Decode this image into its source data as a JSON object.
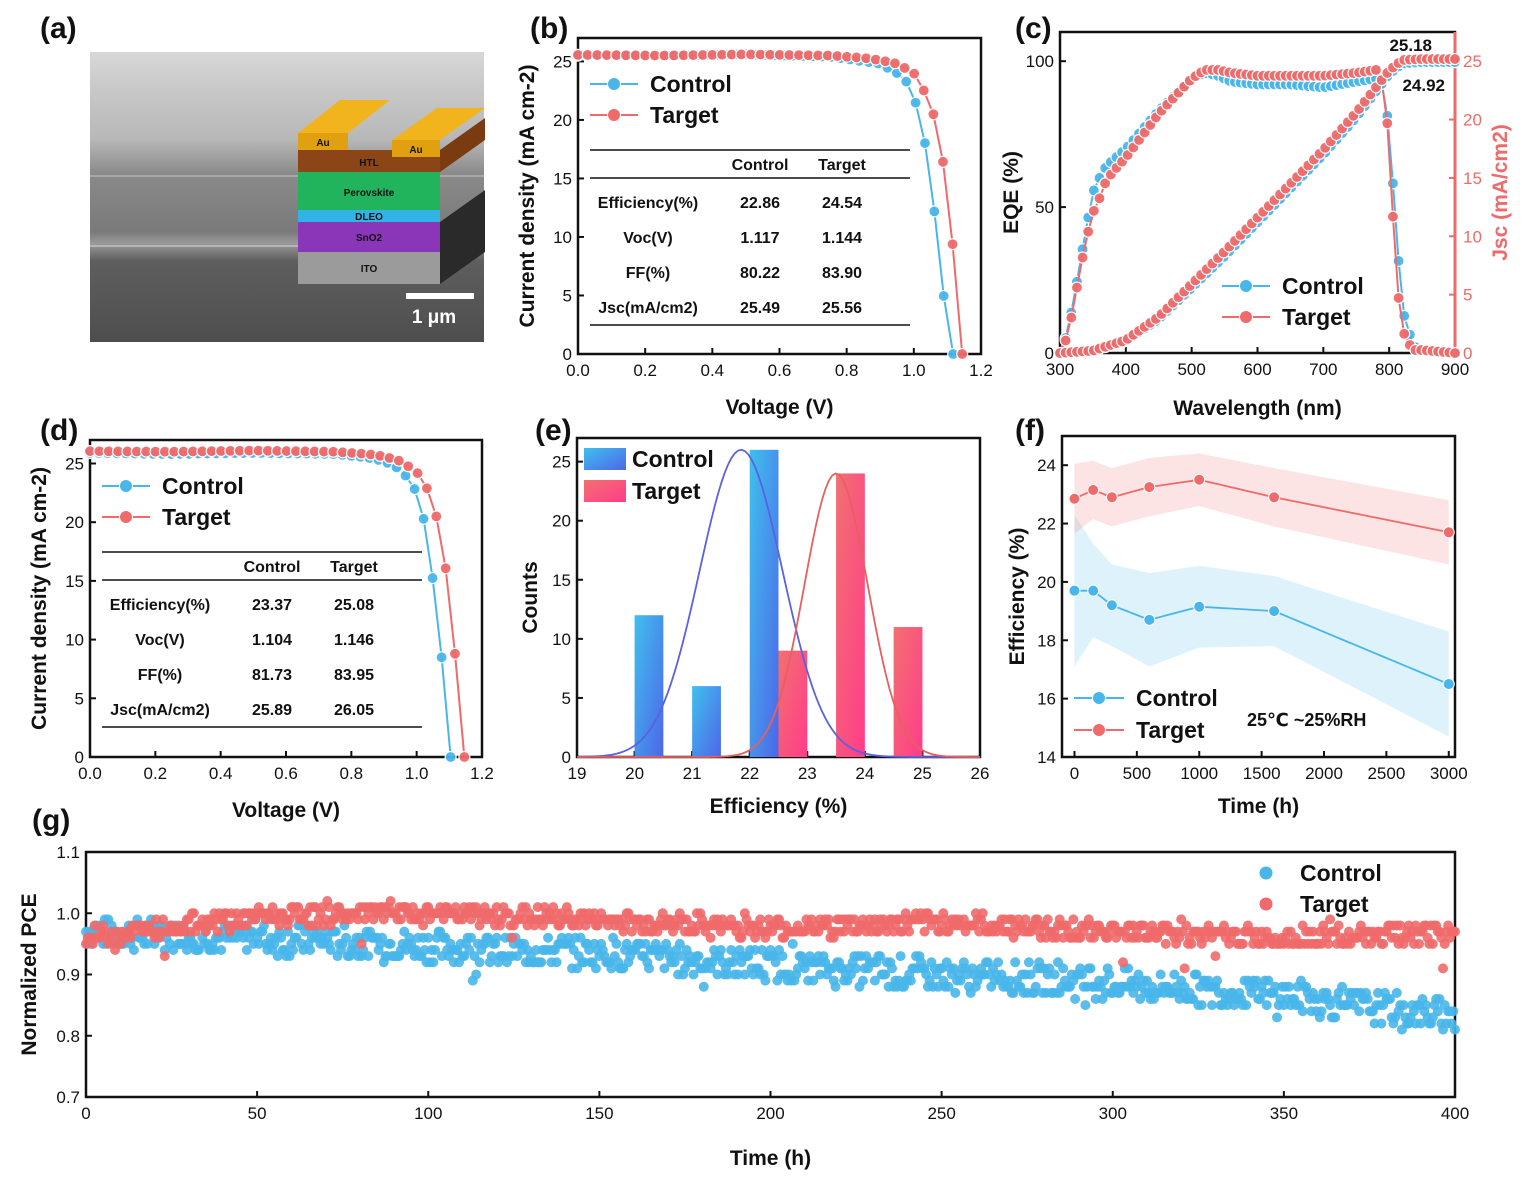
{
  "panel_labels": [
    "(a)",
    "(b)",
    "(c)",
    "(d)",
    "(e)",
    "(f)",
    "(g)"
  ],
  "colors": {
    "control": "#48b6ea",
    "target": "#ef6a6a",
    "control_dist_line": "#5a62e0",
    "target_dist_line": "#e66060",
    "axis": "#111111"
  },
  "device": {
    "layers": [
      "Au",
      "Au",
      "HTL",
      "Perovskite",
      "DLEO",
      "SnO2",
      "ITO"
    ],
    "scale_bar": "1 μm"
  },
  "chart_data": [
    {
      "id": "b",
      "type": "line",
      "xlabel": "Voltage (V)",
      "ylabel": "Current density (mA cm-2)",
      "xlim": [
        0,
        1.2
      ],
      "ylim": [
        0,
        27
      ],
      "xticks": [
        "0.0",
        "0.2",
        "0.4",
        "0.6",
        "0.8",
        "1.0",
        "1.2"
      ],
      "yticks": [
        "0",
        "5",
        "10",
        "15",
        "20",
        "25"
      ],
      "legend": [
        "Control",
        "Target"
      ],
      "legend_position": "top-left",
      "series": [
        {
          "name": "Control",
          "x": [
            0,
            0.25,
            0.5,
            0.75,
            0.85,
            0.9,
            0.95,
            0.98,
            1.0,
            1.02,
            1.04,
            1.06,
            1.08,
            1.1,
            1.117
          ],
          "y": [
            25.49,
            25.5,
            25.6,
            25.4,
            25.0,
            24.8,
            24.0,
            23.2,
            22.0,
            20.0,
            17.0,
            12.5,
            7.0,
            2.5,
            0
          ]
        },
        {
          "name": "Target",
          "x": [
            0,
            0.25,
            0.5,
            0.75,
            0.85,
            0.9,
            0.95,
            1.0,
            1.04,
            1.07,
            1.1,
            1.12,
            1.144
          ],
          "y": [
            25.56,
            25.5,
            25.6,
            25.5,
            25.3,
            25.1,
            24.8,
            24.0,
            22.0,
            19.5,
            14.0,
            8.0,
            0
          ]
        }
      ],
      "table": {
        "columns": [
          "",
          "Control",
          "Target"
        ],
        "rows": [
          [
            "Efficiency(%)",
            "22.86",
            "24.54"
          ],
          [
            "Voc(V)",
            "1.117",
            "1.144"
          ],
          [
            "FF(%)",
            "80.22",
            "83.90"
          ],
          [
            "Jsc(mA/cm2)",
            "25.49",
            "25.56"
          ]
        ]
      }
    },
    {
      "id": "c",
      "type": "line",
      "xlabel": "Wavelength (nm)",
      "ylabel": "EQE (%)",
      "ylabel_right": "Jsc (mA/cm2)",
      "xlim": [
        300,
        900
      ],
      "ylim": [
        0,
        100
      ],
      "ylim_right": [
        0,
        25
      ],
      "xticks": [
        "300",
        "400",
        "500",
        "600",
        "700",
        "800",
        "900"
      ],
      "yticks": [
        "0",
        "50",
        "100"
      ],
      "yticks_right": [
        "0",
        "5",
        "10",
        "15",
        "20",
        "25"
      ],
      "legend": [
        "Control",
        "Target"
      ],
      "legend_position": "bottom-right",
      "annotations": [
        "25.18",
        "24.92"
      ],
      "series": [
        {
          "name": "Control",
          "axis": "left",
          "x": [
            300,
            310,
            320,
            330,
            340,
            350,
            360,
            370,
            380,
            400,
            450,
            500,
            520,
            540,
            560,
            600,
            650,
            700,
            750,
            780,
            790,
            800,
            810,
            820,
            830,
            840,
            850,
            900
          ],
          "y": [
            0,
            6,
            17,
            30,
            43,
            55,
            60,
            64,
            66,
            70,
            83,
            94,
            96,
            95,
            93,
            92,
            92,
            91,
            93,
            94,
            92,
            77,
            44,
            15,
            7,
            2,
            1,
            0
          ]
        },
        {
          "name": "Target",
          "axis": "left",
          "x": [
            300,
            310,
            320,
            330,
            340,
            350,
            360,
            370,
            380,
            400,
            450,
            500,
            520,
            540,
            560,
            600,
            650,
            700,
            750,
            780,
            790,
            800,
            810,
            820,
            830,
            840,
            850,
            900
          ],
          "y": [
            0,
            5,
            15,
            28,
            39,
            48,
            53,
            59,
            62,
            67,
            82,
            94,
            97,
            97,
            96,
            95,
            95,
            95,
            96,
            97,
            93,
            73,
            27,
            8,
            3,
            1,
            1,
            0
          ]
        },
        {
          "name": "Control",
          "axis": "right",
          "x": [
            300,
            350,
            400,
            450,
            500,
            550,
            600,
            650,
            700,
            750,
            800,
            820,
            850,
            900
          ],
          "y": [
            0,
            0.2,
            1.0,
            2.9,
            5.6,
            8.3,
            11.2,
            14.1,
            17.0,
            20.2,
            23.9,
            24.8,
            24.92,
            24.92
          ]
        },
        {
          "name": "Target",
          "axis": "right",
          "x": [
            300,
            350,
            400,
            450,
            500,
            550,
            600,
            650,
            700,
            750,
            800,
            820,
            850,
            900
          ],
          "y": [
            0,
            0.2,
            1.1,
            3.1,
            5.9,
            8.7,
            11.6,
            14.5,
            17.4,
            20.6,
            24.2,
            25.1,
            25.18,
            25.18
          ]
        }
      ]
    },
    {
      "id": "d",
      "type": "line",
      "xlabel": "Voltage (V)",
      "ylabel": "Current density (mA cm-2)",
      "xlim": [
        0,
        1.2
      ],
      "ylim": [
        0,
        27
      ],
      "xticks": [
        "0.0",
        "0.2",
        "0.4",
        "0.6",
        "0.8",
        "1.0",
        "1.2"
      ],
      "yticks": [
        "0",
        "5",
        "10",
        "15",
        "20",
        "25"
      ],
      "legend": [
        "Control",
        "Target"
      ],
      "legend_position": "top-left",
      "series": [
        {
          "name": "Control",
          "x": [
            0,
            0.25,
            0.5,
            0.75,
            0.85,
            0.9,
            0.95,
            0.98,
            1.0,
            1.02,
            1.04,
            1.06,
            1.08,
            1.1,
            1.104
          ],
          "y": [
            25.89,
            25.8,
            25.9,
            25.8,
            25.5,
            25.2,
            24.5,
            23.5,
            22.5,
            20.5,
            17.0,
            13.0,
            7.5,
            1.5,
            0
          ]
        },
        {
          "name": "Target",
          "x": [
            0,
            0.25,
            0.5,
            0.75,
            0.85,
            0.9,
            0.95,
            1.0,
            1.04,
            1.07,
            1.1,
            1.12,
            1.146
          ],
          "y": [
            26.05,
            26.0,
            26.1,
            26.0,
            25.8,
            25.6,
            25.2,
            24.3,
            22.5,
            19.5,
            14.0,
            8.0,
            0
          ]
        }
      ],
      "table": {
        "columns": [
          "",
          "Control",
          "Target"
        ],
        "rows": [
          [
            "Efficiency(%)",
            "23.37",
            "25.08"
          ],
          [
            "Voc(V)",
            "1.104",
            "1.146"
          ],
          [
            "FF(%)",
            "81.73",
            "83.95"
          ],
          [
            "Jsc(mA/cm2)",
            "25.89",
            "26.05"
          ]
        ]
      }
    },
    {
      "id": "e",
      "type": "bar",
      "xlabel": "Efficiency (%)",
      "ylabel": "Counts",
      "xlim": [
        19,
        26
      ],
      "ylim": [
        0,
        27
      ],
      "xticks": [
        "19",
        "20",
        "21",
        "22",
        "23",
        "24",
        "25",
        "26"
      ],
      "yticks": [
        "0",
        "5",
        "10",
        "15",
        "20",
        "25"
      ],
      "legend": [
        "Control",
        "Target"
      ],
      "legend_position": "top-left",
      "bar_width": 0.5,
      "series": [
        {
          "name": "Control",
          "x": [
            20.25,
            21.25,
            22.25
          ],
          "values": [
            12,
            6,
            26
          ]
        },
        {
          "name": "Target",
          "x": [
            22.75,
            23.75,
            24.75
          ],
          "values": [
            9,
            24,
            11
          ]
        }
      ],
      "distributions": [
        {
          "name": "Control",
          "mean": 21.85,
          "sd": 0.72,
          "peak": 26
        },
        {
          "name": "Target",
          "mean": 23.5,
          "sd": 0.55,
          "peak": 24
        }
      ]
    },
    {
      "id": "f",
      "type": "line",
      "xlabel": "Time (h)",
      "ylabel": "Efficiency (%)",
      "xlim": [
        -100,
        3050
      ],
      "ylim": [
        14,
        25
      ],
      "xticks": [
        "0",
        "500",
        "1000",
        "1500",
        "2000",
        "2500",
        "3000"
      ],
      "yticks": [
        "14",
        "16",
        "18",
        "20",
        "22",
        "24"
      ],
      "legend": [
        "Control",
        "Target"
      ],
      "legend_position": "bottom-left",
      "annotation": "25℃ ~25%RH",
      "series": [
        {
          "name": "Control",
          "x": [
            0,
            150,
            300,
            600,
            1000,
            1600,
            3000
          ],
          "y": [
            19.7,
            19.7,
            19.2,
            18.7,
            19.15,
            19.0,
            16.5
          ],
          "band": [
            2.6,
            1.6,
            1.4,
            1.6,
            1.4,
            1.2,
            1.8
          ]
        },
        {
          "name": "Target",
          "x": [
            0,
            150,
            300,
            600,
            1000,
            1600,
            3000
          ],
          "y": [
            22.85,
            23.15,
            22.9,
            23.25,
            23.5,
            22.9,
            21.7
          ],
          "band": [
            1.2,
            1.0,
            1.0,
            1.0,
            0.9,
            1.0,
            1.1
          ]
        }
      ]
    },
    {
      "id": "g",
      "type": "scatter",
      "xlabel": "Time (h)",
      "ylabel": "Normalized PCE",
      "xlim": [
        0,
        400
      ],
      "ylim": [
        0.7,
        1.1
      ],
      "xticks": [
        "0",
        "50",
        "100",
        "150",
        "200",
        "250",
        "300",
        "350",
        "400"
      ],
      "yticks": [
        "0.7",
        "0.8",
        "0.9",
        "1.0",
        "1.1"
      ],
      "legend": [
        "Control",
        "Target"
      ],
      "legend_position": "top-right",
      "series": [
        {
          "name": "Control",
          "trend_x": [
            0,
            50,
            100,
            150,
            200,
            250,
            300,
            350,
            400
          ],
          "trend_y": [
            0.97,
            0.96,
            0.945,
            0.935,
            0.915,
            0.9,
            0.885,
            0.865,
            0.83
          ],
          "spread": 0.025
        },
        {
          "name": "Target",
          "trend_x": [
            0,
            50,
            100,
            150,
            200,
            250,
            300,
            350,
            400
          ],
          "trend_y": [
            0.96,
            0.995,
            1.0,
            0.99,
            0.975,
            0.985,
            0.97,
            0.96,
            0.965
          ],
          "spread": 0.015
        }
      ]
    }
  ]
}
